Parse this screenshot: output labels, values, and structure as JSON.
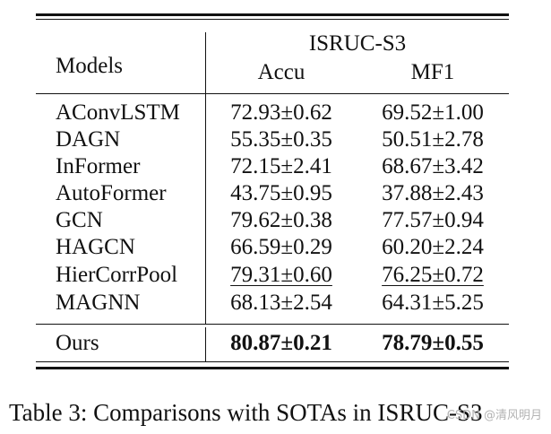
{
  "table": {
    "header": {
      "models_label": "Models",
      "dataset": "ISRUC-S3",
      "accu_label": "Accu",
      "mf1_label": "MF1"
    },
    "rows": [
      {
        "model": "AConvLSTM",
        "accu": "72.93±0.62",
        "mf1": "69.52±1.00"
      },
      {
        "model": "DAGN",
        "accu": "55.35±0.35",
        "mf1": "50.51±2.78"
      },
      {
        "model": "InFormer",
        "accu": "72.15±2.41",
        "mf1": "68.67±3.42"
      },
      {
        "model": "AutoFormer",
        "accu": "43.75±0.95",
        "mf1": "37.88±2.43"
      },
      {
        "model": "GCN",
        "accu": "79.62±0.38",
        "mf1": "77.57±0.94"
      },
      {
        "model": "HAGCN",
        "accu": "66.59±0.29",
        "mf1": "60.20±2.24"
      },
      {
        "model": "HierCorrPool",
        "accu": "79.31±0.60",
        "mf1": "76.25±0.72"
      },
      {
        "model": "MAGNN",
        "accu": "68.13±2.54",
        "mf1": "64.31±5.25"
      }
    ],
    "ours": {
      "model": "Ours",
      "accu": "80.87±0.21",
      "mf1": "78.79±0.55"
    }
  },
  "caption": "Table 3: Comparisons with SOTAs in ISRUC-S3",
  "watermark": "CSDN @清风明月"
}
